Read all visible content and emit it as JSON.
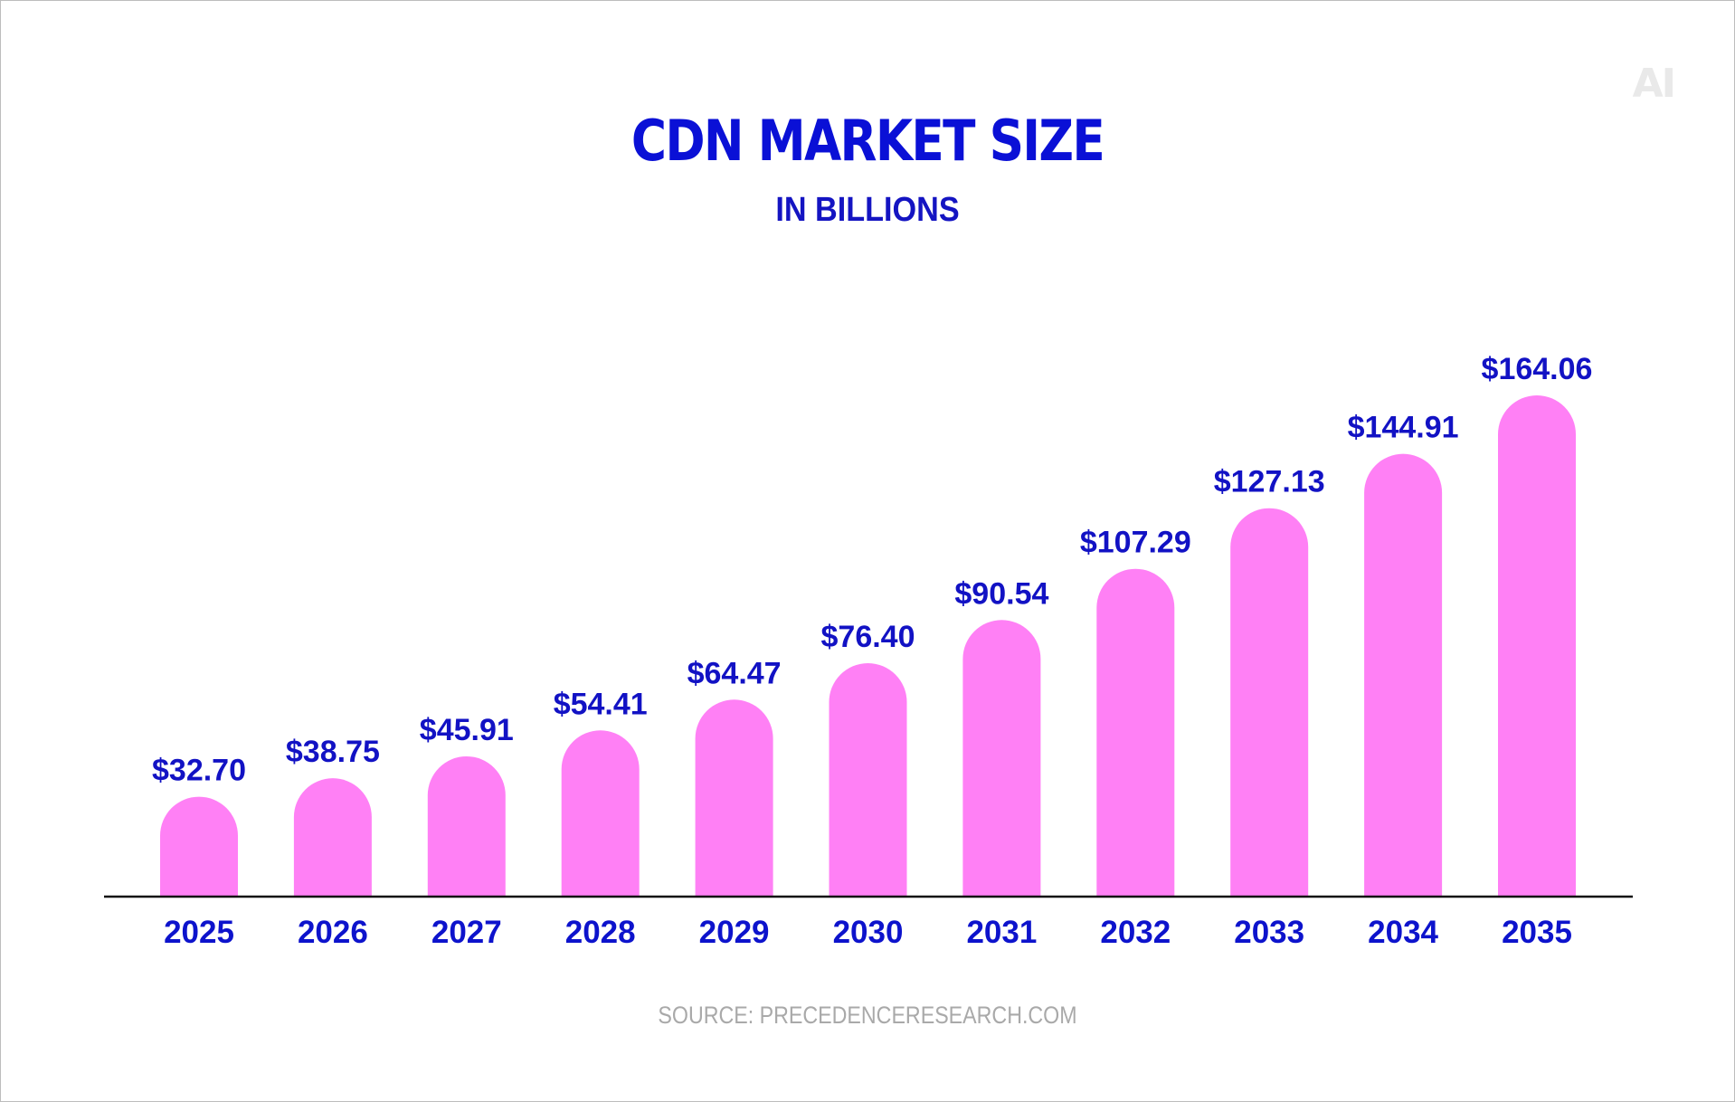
{
  "logo": "AI",
  "colors": {
    "bar": "#ff80f5",
    "text": "#0d13cc",
    "source": "#a9a9a9",
    "axis": "#111111"
  },
  "chart_data": {
    "type": "bar",
    "title": "CDN MARKET SIZE",
    "subtitle": "IN BILLIONS",
    "source": "SOURCE: PRECEDENCERESEARCH.COM",
    "categories": [
      "2025",
      "2026",
      "2027",
      "2028",
      "2029",
      "2030",
      "2031",
      "2032",
      "2033",
      "2034",
      "2035"
    ],
    "values": [
      32.7,
      38.75,
      45.91,
      54.41,
      64.47,
      76.4,
      90.54,
      107.29,
      127.13,
      144.91,
      164.06
    ],
    "value_labels": [
      "$32.70",
      "$38.75",
      "$45.91",
      "$54.41",
      "$64.47",
      "$76.40",
      "$90.54",
      "$107.29",
      "$127.13",
      "$144.91",
      "$164.06"
    ],
    "ylim": [
      0,
      164.06
    ],
    "grid": false,
    "legend": "none"
  }
}
